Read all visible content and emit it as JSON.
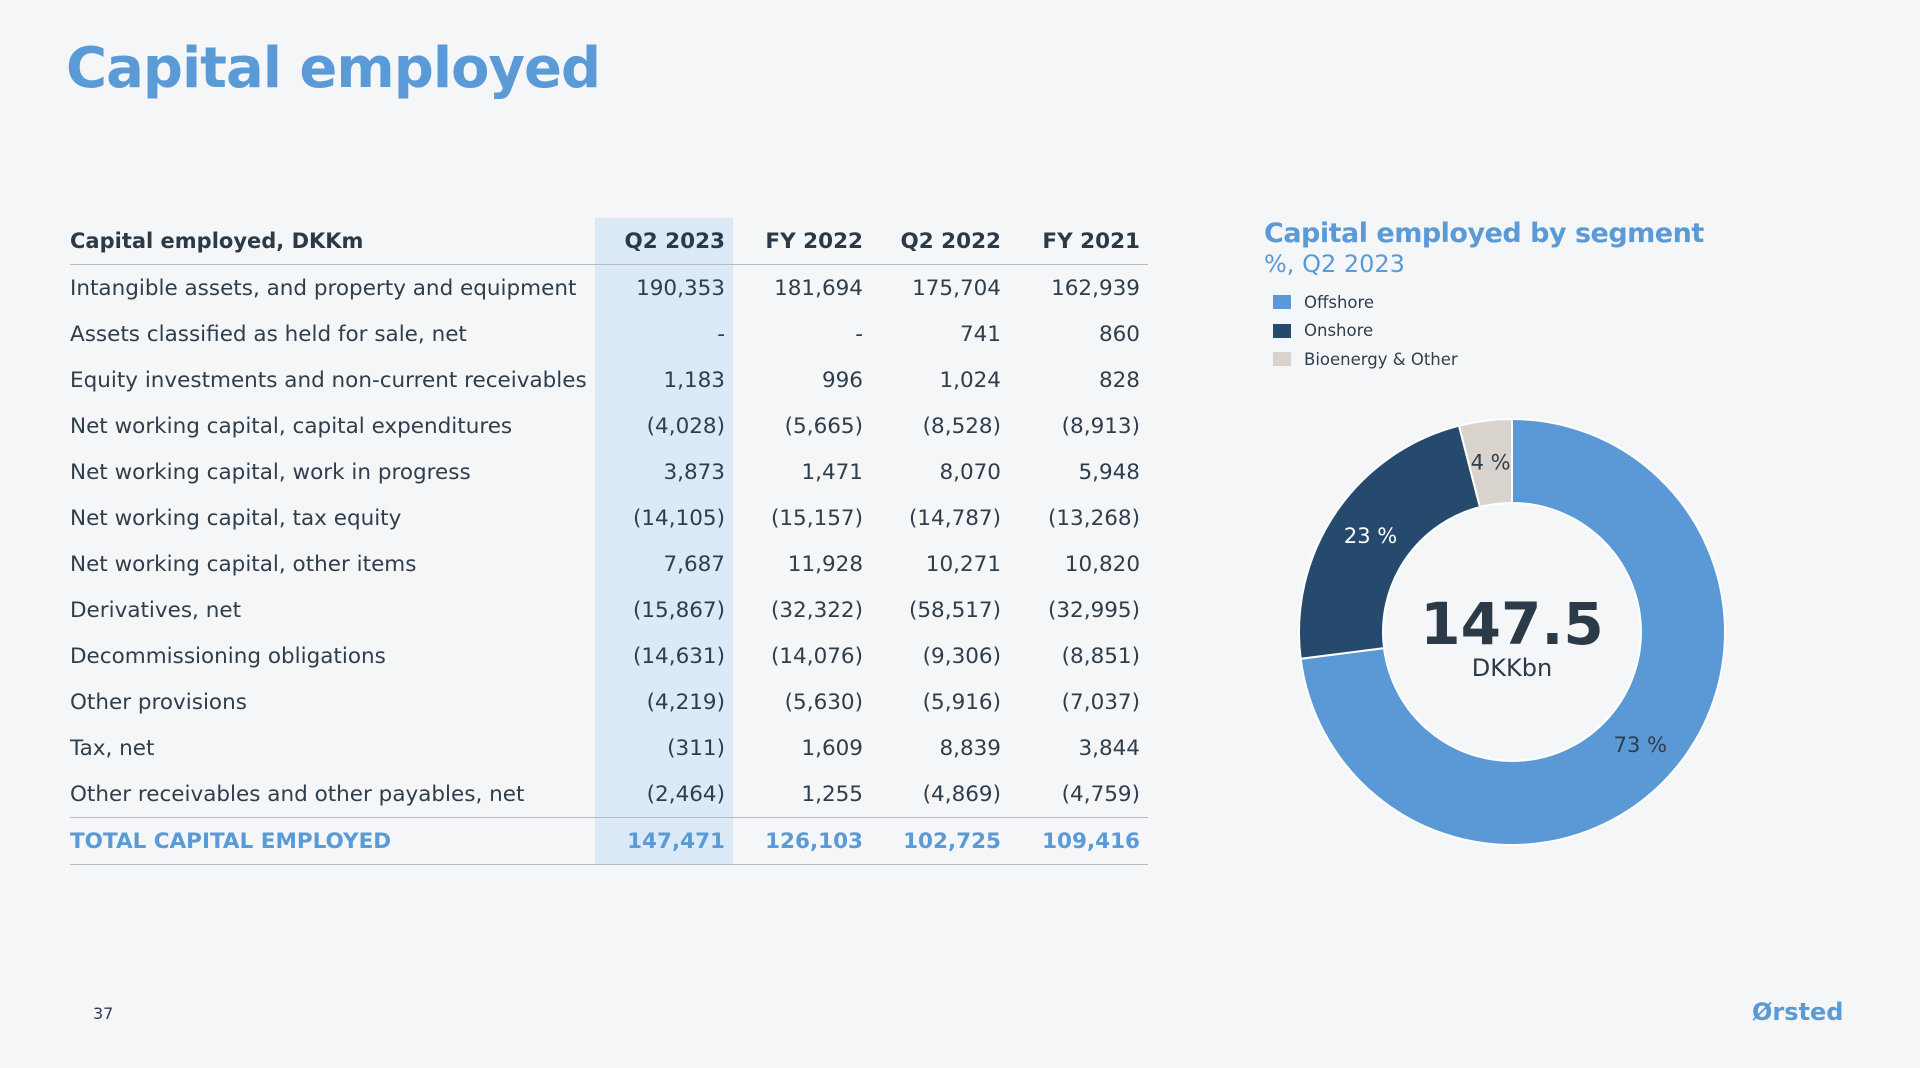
{
  "title": "Capital employed",
  "table": {
    "header": [
      "Capital employed, DKKm",
      "Q2 2023",
      "FY 2022",
      "Q2 2022",
      "FY 2021"
    ],
    "rows": [
      [
        "Intangible assets, and property and equipment",
        "190,353",
        "181,694",
        "175,704",
        "162,939"
      ],
      [
        "Assets classified as held for sale, net",
        "-",
        "-",
        "741",
        "860"
      ],
      [
        "Equity investments and non-current receivables",
        "1,183",
        "996",
        "1,024",
        "828"
      ],
      [
        "Net working capital, capital expenditures",
        "(4,028)",
        "(5,665)",
        "(8,528)",
        "(8,913)"
      ],
      [
        "Net working capital, work in progress",
        "3,873",
        "1,471",
        "8,070",
        "5,948"
      ],
      [
        "Net working capital, tax equity",
        "(14,105)",
        "(15,157)",
        "(14,787)",
        "(13,268)"
      ],
      [
        "Net working capital, other items",
        "7,687",
        "11,928",
        "10,271",
        "10,820"
      ],
      [
        "Derivatives, net",
        "(15,867)",
        "(32,322)",
        "(58,517)",
        "(32,995)"
      ],
      [
        "Decommissioning obligations",
        "(14,631)",
        "(14,076)",
        "(9,306)",
        "(8,851)"
      ],
      [
        "Other provisions",
        "(4,219)",
        "(5,630)",
        "(5,916)",
        "(7,037)"
      ],
      [
        "Tax, net",
        "(311)",
        "1,609",
        "8,839",
        "3,844"
      ],
      [
        "Other receivables and other payables, net",
        "(2,464)",
        "1,255",
        "(4,869)",
        "(4,759)"
      ]
    ],
    "total": [
      "TOTAL CAPITAL EMPLOYED",
      "147,471",
      "126,103",
      "102,725",
      "109,416"
    ]
  },
  "chart_data": {
    "type": "pie",
    "title": "Capital employed by segment",
    "subtitle": "%, Q2 2023",
    "categories": [
      "Offshore",
      "Onshore",
      "Bioenergy & Other"
    ],
    "values": [
      73,
      23,
      4
    ],
    "data_labels": [
      "73 %",
      "23 %",
      "4 %"
    ],
    "colors": [
      "#5a98d6",
      "#254a6e",
      "#d8d3cd"
    ],
    "center_value": "147.5",
    "center_unit": "DKKbn",
    "legend_position": "top-left"
  },
  "footer": {
    "page_number": "37",
    "logo": "Ørsted"
  }
}
